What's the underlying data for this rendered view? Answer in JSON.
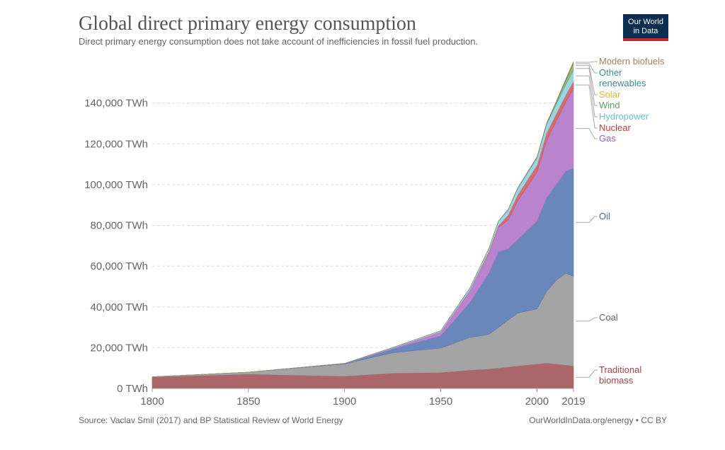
{
  "header": {
    "title": "Global direct primary energy consumption",
    "subtitle": "Direct primary energy consumption does not take account of inefficiencies in fossil fuel production.",
    "logo_line1": "Our World",
    "logo_line2": "in Data"
  },
  "footer": {
    "source": "Source: Vaclav Smil (2017) and BP Statistical Review of World Energy",
    "license": "OurWorldInData.org/energy • CC BY"
  },
  "chart_data": {
    "type": "area",
    "stacked": true,
    "x": [
      1800,
      1850,
      1900,
      1925,
      1950,
      1965,
      1975,
      1980,
      1985,
      1990,
      2000,
      2005,
      2010,
      2015,
      2019
    ],
    "xticks": [
      1800,
      1850,
      1900,
      1950,
      2000,
      2019
    ],
    "xlim": [
      1800,
      2019
    ],
    "ylim": [
      0,
      160000
    ],
    "yticks": [
      0,
      20000,
      40000,
      60000,
      80000,
      100000,
      120000,
      140000
    ],
    "ytick_labels": [
      "0 TWh",
      "20,000 TWh",
      "40,000 TWh",
      "60,000 TWh",
      "80,000 TWh",
      "100,000 TWh",
      "120,000 TWh",
      "140,000 TWh"
    ],
    "grid": true,
    "series": [
      {
        "name": "Traditional biomass",
        "color": "#a2555a",
        "values": [
          5600,
          7000,
          6000,
          7500,
          7800,
          9000,
          9500,
          10000,
          10500,
          11000,
          12000,
          12500,
          12000,
          11500,
          11000
        ]
      },
      {
        "name": "Coal",
        "color": "#9a9a9a",
        "values": [
          100,
          1000,
          6000,
          10000,
          12000,
          16000,
          17000,
          20000,
          23000,
          26000,
          27000,
          35000,
          41000,
          45000,
          44000
        ]
      },
      {
        "name": "Oil",
        "color": "#5a7ab5",
        "values": [
          0,
          0,
          200,
          1800,
          6000,
          17000,
          30000,
          37000,
          35000,
          36000,
          43000,
          46000,
          47000,
          50000,
          53000
        ]
      },
      {
        "name": "Gas",
        "color": "#b175c8",
        "values": [
          0,
          0,
          100,
          500,
          2000,
          6000,
          10000,
          12000,
          14000,
          19000,
          24000,
          28000,
          31000,
          34000,
          39000
        ]
      },
      {
        "name": "Nuclear",
        "color": "#d05b5b",
        "values": [
          0,
          0,
          0,
          0,
          0,
          50,
          600,
          1000,
          2500,
          3000,
          3500,
          3800,
          3700,
          3500,
          3700
        ]
      },
      {
        "name": "Hydropower",
        "color": "#8fd1e0",
        "values": [
          0,
          0,
          0,
          300,
          500,
          1000,
          1500,
          2000,
          2500,
          3000,
          3500,
          4000,
          4500,
          5000,
          5300
        ]
      },
      {
        "name": "Wind",
        "color": "#6fb173",
        "values": [
          0,
          0,
          0,
          0,
          0,
          0,
          0,
          0,
          0,
          10,
          50,
          150,
          500,
          1200,
          1900
        ]
      },
      {
        "name": "Solar",
        "color": "#e8c14a",
        "values": [
          0,
          0,
          0,
          0,
          0,
          0,
          0,
          0,
          0,
          0,
          5,
          10,
          50,
          400,
          1000
        ]
      },
      {
        "name": "Other renewables",
        "color": "#4a9da6",
        "values": [
          0,
          0,
          0,
          0,
          0,
          0,
          50,
          150,
          200,
          300,
          400,
          500,
          600,
          700,
          800
        ]
      },
      {
        "name": "Modern biofuels",
        "color": "#a2835a",
        "values": [
          0,
          0,
          0,
          0,
          0,
          0,
          0,
          0,
          50,
          100,
          150,
          200,
          300,
          500,
          600
        ]
      }
    ],
    "legend_placement": "right, inline labels"
  }
}
